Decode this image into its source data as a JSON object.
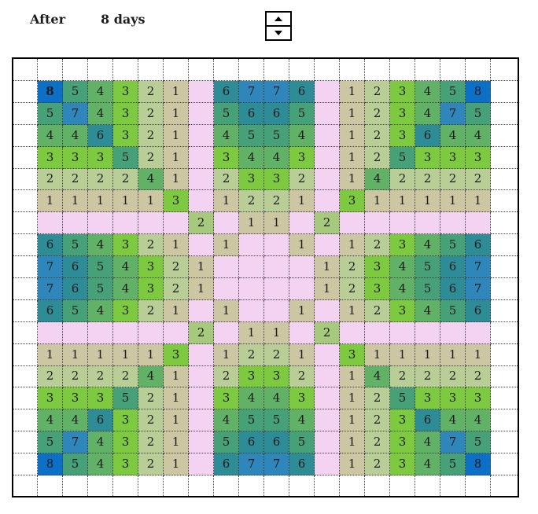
{
  "header": {
    "after_label": "After",
    "days_value": "8 days"
  },
  "spinner": {
    "up_icon": "arrow-up",
    "down_icon": "arrow-down"
  },
  "colors": {
    "text": "#1C1C1C",
    "gridline": "#3F3F3F",
    "border": "#000000",
    "empty": "#F4D2F1",
    "alt_two": "#A6C97E",
    "values": {
      "1": "#CCC6A3",
      "2": "#B9CD96",
      "3": "#7DC93F",
      "4": "#61B266",
      "5": "#47A178",
      "6": "#2E8C97",
      "7": "#2E86BB",
      "8": "#0B70C6"
    }
  },
  "grid": {
    "rows": 18,
    "cols": 18,
    "bold_cells": [
      [
        1,
        1
      ]
    ],
    "alt_color_cells": [
      [
        7,
        7
      ],
      [
        7,
        12
      ],
      [
        12,
        7
      ],
      [
        12,
        12
      ]
    ],
    "cells": [
      [
        8,
        5,
        4,
        3,
        2,
        1,
        null,
        6,
        7,
        7,
        6,
        null,
        1,
        2,
        3,
        4,
        5,
        8
      ],
      [
        5,
        7,
        4,
        3,
        2,
        1,
        null,
        5,
        6,
        6,
        5,
        null,
        1,
        2,
        3,
        4,
        7,
        5
      ],
      [
        4,
        4,
        6,
        3,
        2,
        1,
        null,
        4,
        5,
        5,
        4,
        null,
        1,
        2,
        3,
        6,
        4,
        4
      ],
      [
        3,
        3,
        3,
        5,
        2,
        1,
        null,
        3,
        4,
        4,
        3,
        null,
        1,
        2,
        5,
        3,
        3,
        3
      ],
      [
        2,
        2,
        2,
        2,
        4,
        1,
        null,
        2,
        3,
        3,
        2,
        null,
        1,
        4,
        2,
        2,
        2,
        2
      ],
      [
        1,
        1,
        1,
        1,
        1,
        3,
        null,
        1,
        2,
        2,
        1,
        null,
        3,
        1,
        1,
        1,
        1,
        1
      ],
      [
        null,
        null,
        null,
        null,
        null,
        null,
        2,
        null,
        1,
        1,
        null,
        2,
        null,
        null,
        null,
        null,
        null,
        null
      ],
      [
        6,
        5,
        4,
        3,
        2,
        1,
        null,
        1,
        null,
        null,
        1,
        null,
        1,
        2,
        3,
        4,
        5,
        6
      ],
      [
        7,
        6,
        5,
        4,
        3,
        2,
        1,
        null,
        null,
        null,
        null,
        1,
        2,
        3,
        4,
        5,
        6,
        7
      ],
      [
        7,
        6,
        5,
        4,
        3,
        2,
        1,
        null,
        null,
        null,
        null,
        1,
        2,
        3,
        4,
        5,
        6,
        7
      ],
      [
        6,
        5,
        4,
        3,
        2,
        1,
        null,
        1,
        null,
        null,
        1,
        null,
        1,
        2,
        3,
        4,
        5,
        6
      ],
      [
        null,
        null,
        null,
        null,
        null,
        null,
        2,
        null,
        1,
        1,
        null,
        2,
        null,
        null,
        null,
        null,
        null,
        null
      ],
      [
        1,
        1,
        1,
        1,
        1,
        3,
        null,
        1,
        2,
        2,
        1,
        null,
        3,
        1,
        1,
        1,
        1,
        1
      ],
      [
        2,
        2,
        2,
        2,
        4,
        1,
        null,
        2,
        3,
        3,
        2,
        null,
        1,
        4,
        2,
        2,
        2,
        2
      ],
      [
        3,
        3,
        3,
        5,
        2,
        1,
        null,
        3,
        4,
        4,
        3,
        null,
        1,
        2,
        5,
        3,
        3,
        3
      ],
      [
        4,
        4,
        6,
        3,
        2,
        1,
        null,
        4,
        5,
        5,
        4,
        null,
        1,
        2,
        3,
        6,
        4,
        4
      ],
      [
        5,
        7,
        4,
        3,
        2,
        1,
        null,
        5,
        6,
        6,
        5,
        null,
        1,
        2,
        3,
        4,
        7,
        5
      ],
      [
        8,
        5,
        4,
        3,
        2,
        1,
        null,
        6,
        7,
        7,
        6,
        null,
        1,
        2,
        3,
        4,
        5,
        8
      ]
    ]
  }
}
